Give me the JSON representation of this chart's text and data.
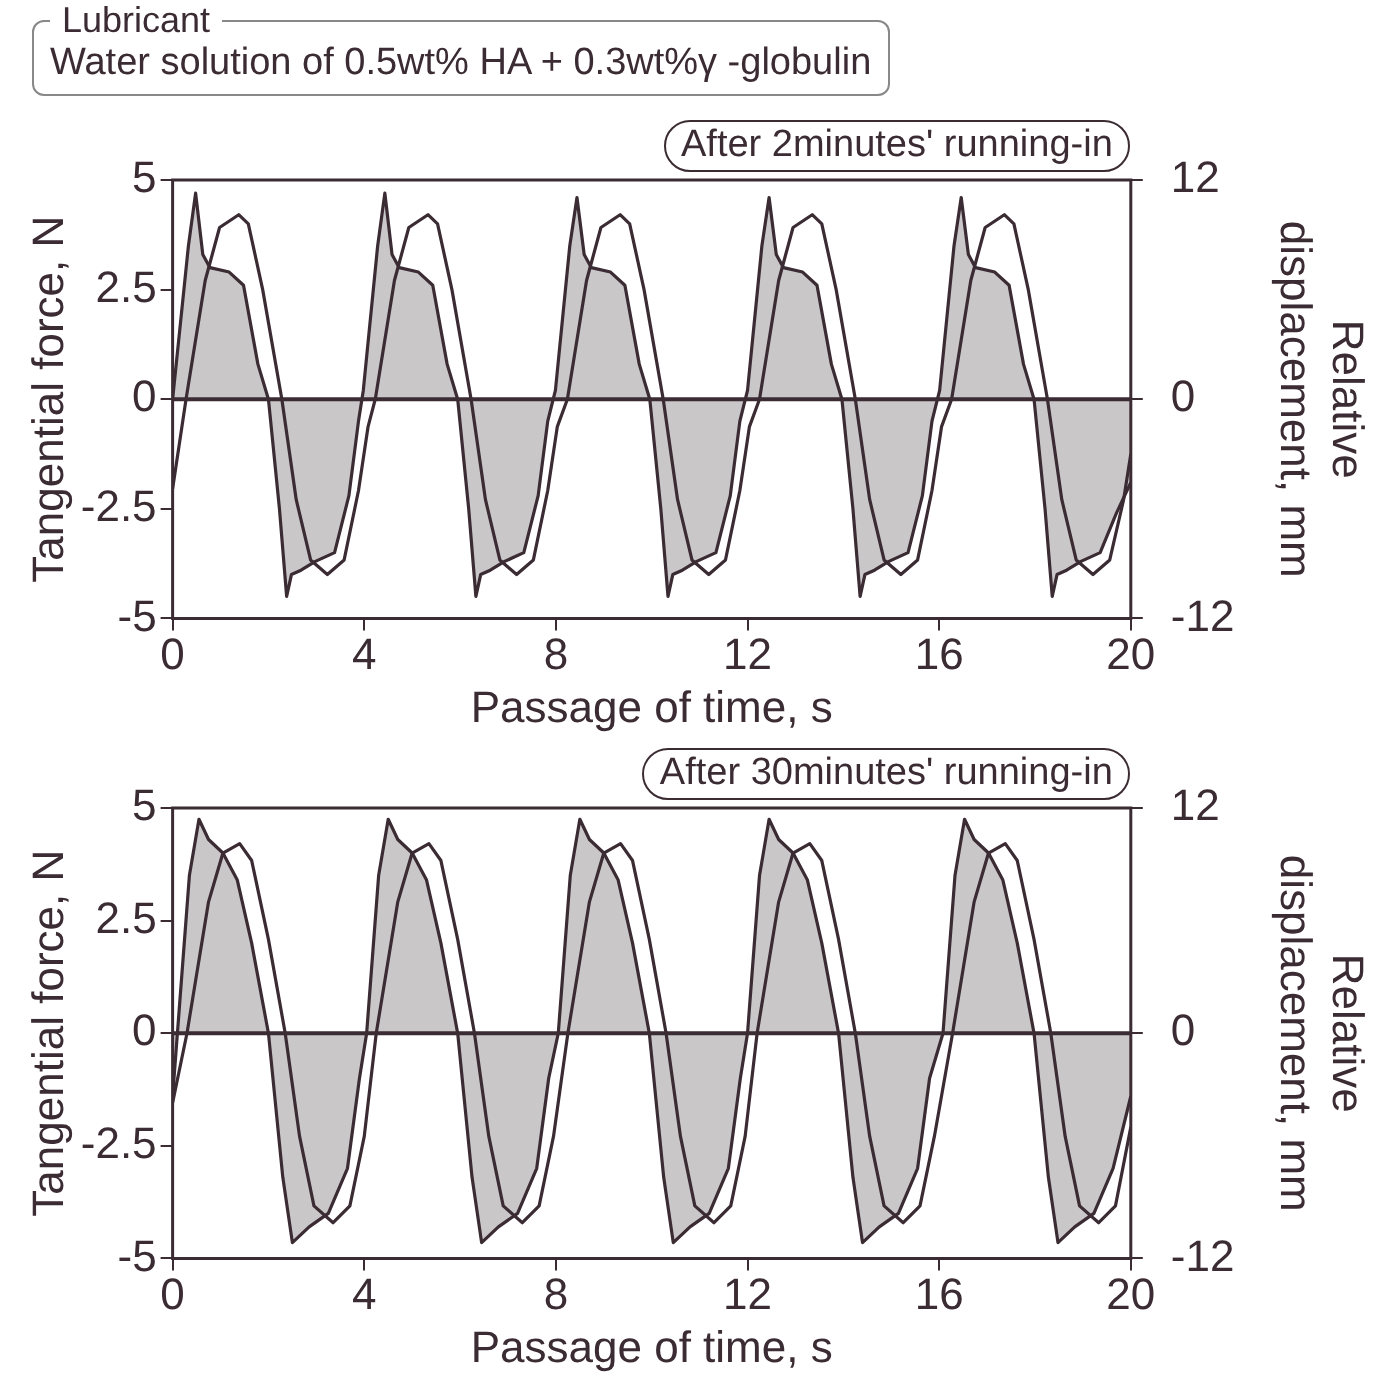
{
  "chart_data": [
    {
      "type": "line",
      "annotations": [
        "Lubricant",
        "Water solution of 0.5wt% HA + 0.3wt%γ -globulin",
        "After 2minutes' running-in"
      ],
      "xlabel": "Passage of time, s",
      "ylabel": "Tangential force, N",
      "y2label": "Relative displacement, mm",
      "xlim": [
        0,
        20
      ],
      "xticks": [
        0,
        4,
        8,
        12,
        16,
        20
      ],
      "ylim": [
        -5,
        5
      ],
      "yticks": [
        -5,
        -2.5,
        0,
        2.5,
        5
      ],
      "y2lim": [
        -12,
        12
      ],
      "y2ticks": [
        -12,
        0,
        12
      ],
      "grid": false,
      "legend": false,
      "ref_lines": [
        {
          "axis": "y",
          "value": 0,
          "color": "#3b2b33"
        }
      ],
      "series": [
        {
          "type": "area",
          "color": "#c9c7c8",
          "x": [
            0,
            0.33,
            0.48,
            0.63,
            0.78,
            1.18,
            1.48,
            1.78,
            2.0,
            2.23,
            2.38,
            2.48,
            2.68,
            2.98,
            3.38,
            3.68,
            3.88,
            3.98,
            4.28,
            4.43,
            4.58,
            4.73,
            5.13,
            5.43,
            5.73,
            5.95,
            6.18,
            6.33,
            6.43,
            6.63,
            6.93,
            7.33,
            7.63,
            7.83,
            7.99,
            8.29,
            8.44,
            8.59,
            8.74,
            9.14,
            9.44,
            9.74,
            9.96,
            10.19,
            10.34,
            10.44,
            10.64,
            10.94,
            11.34,
            11.64,
            11.84,
            12.0,
            12.3,
            12.45,
            12.6,
            12.75,
            13.15,
            13.45,
            13.75,
            13.97,
            14.2,
            14.35,
            14.45,
            14.65,
            14.95,
            15.35,
            15.65,
            15.85,
            16.01,
            16.31,
            16.46,
            16.61,
            16.76,
            17.16,
            17.46,
            17.76,
            17.98,
            18.21,
            18.36,
            18.46,
            18.66,
            18.96,
            19.36,
            19.7,
            20
          ],
          "values": [
            0,
            3.5,
            4.7,
            3.3,
            3.0,
            2.9,
            2.6,
            0.8,
            0,
            -2.5,
            -4.5,
            -4.0,
            -3.9,
            -3.7,
            -3.5,
            -2.2,
            -0.5,
            0.2,
            3.5,
            4.7,
            3.3,
            3.0,
            2.9,
            2.6,
            0.8,
            0,
            -2.5,
            -4.5,
            -4.0,
            -3.9,
            -3.7,
            -3.5,
            -2.2,
            -0.5,
            0.2,
            3.5,
            4.6,
            3.3,
            3.0,
            2.9,
            2.6,
            0.8,
            0,
            -2.5,
            -4.5,
            -4.0,
            -3.9,
            -3.7,
            -3.5,
            -2.2,
            -0.5,
            0.2,
            3.5,
            4.6,
            3.3,
            3.0,
            2.9,
            2.6,
            0.8,
            0,
            -2.5,
            -4.5,
            -4.0,
            -3.9,
            -3.7,
            -3.5,
            -2.2,
            -0.5,
            0.2,
            3.5,
            4.6,
            3.3,
            3.0,
            2.9,
            2.6,
            0.8,
            0,
            -2.5,
            -4.5,
            -4.0,
            -3.9,
            -3.7,
            -3.5,
            -2.6,
            -1.9
          ]
        },
        {
          "type": "line",
          "axis": "y2",
          "color": "#3b2b33",
          "x": [
            0,
            0.28,
            0.68,
            0.98,
            1.38,
            1.58,
            1.88,
            2.28,
            2.58,
            2.88,
            3.23,
            3.58,
            3.88,
            4.08,
            4.23,
            4.63,
            4.93,
            5.33,
            5.53,
            5.83,
            6.23,
            6.53,
            6.83,
            7.18,
            7.53,
            7.83,
            8.03,
            8.24,
            8.64,
            8.94,
            9.34,
            9.54,
            9.84,
            10.24,
            10.54,
            10.84,
            11.19,
            11.54,
            11.84,
            12.04,
            12.25,
            12.65,
            12.95,
            13.35,
            13.55,
            13.85,
            14.25,
            14.55,
            14.85,
            15.2,
            15.55,
            15.85,
            16.05,
            16.26,
            16.66,
            16.96,
            17.36,
            17.56,
            17.86,
            18.26,
            18.56,
            18.86,
            19.21,
            19.56,
            19.85,
            20
          ],
          "values": [
            -4.9,
            0,
            6.5,
            9.4,
            10.1,
            9.6,
            6,
            0,
            -5.5,
            -8.8,
            -9.6,
            -8.8,
            -5,
            -1.5,
            0,
            6.5,
            9.4,
            10.1,
            9.6,
            6,
            0,
            -5.5,
            -8.8,
            -9.6,
            -8.8,
            -5,
            -1.5,
            0,
            6.5,
            9.4,
            10.1,
            9.6,
            6,
            0,
            -5.5,
            -8.8,
            -9.6,
            -8.8,
            -5,
            -1.5,
            0,
            6.5,
            9.4,
            10.1,
            9.6,
            6,
            0,
            -5.5,
            -8.8,
            -9.6,
            -8.8,
            -5,
            -1.5,
            0,
            6.5,
            9.4,
            10.1,
            9.6,
            6,
            0,
            -5.5,
            -8.8,
            -9.6,
            -8.8,
            -5.5,
            -3
          ]
        }
      ]
    },
    {
      "type": "line",
      "annotations": [
        "After 30minutes' running-in"
      ],
      "xlabel": "Passage of time, s",
      "ylabel": "Tangential force, N",
      "y2label": "Relative displacement, mm",
      "xlim": [
        0,
        20
      ],
      "xticks": [
        0,
        4,
        8,
        12,
        16,
        20
      ],
      "ylim": [
        -5,
        5
      ],
      "yticks": [
        -5,
        -2.5,
        0,
        2.5,
        5
      ],
      "y2lim": [
        -12,
        12
      ],
      "y2ticks": [
        -12,
        0,
        12
      ],
      "grid": false,
      "legend": false,
      "ref_lines": [
        {
          "axis": "y",
          "value": 0,
          "color": "#3b2b33"
        }
      ],
      "series": [
        {
          "type": "area",
          "color": "#c9c7c8",
          "x": [
            0,
            0.1,
            0.35,
            0.55,
            0.75,
            1.05,
            1.35,
            1.65,
            2.0,
            2.3,
            2.5,
            2.85,
            3.25,
            3.65,
            3.9,
            4.05,
            4.3,
            4.5,
            4.7,
            5.0,
            5.3,
            5.6,
            5.95,
            6.25,
            6.45,
            6.8,
            7.2,
            7.6,
            7.85,
            8.05,
            8.3,
            8.5,
            8.7,
            9.0,
            9.3,
            9.6,
            9.95,
            10.25,
            10.45,
            10.8,
            11.2,
            11.6,
            11.85,
            12.0,
            12.25,
            12.45,
            12.65,
            12.95,
            13.25,
            13.55,
            13.9,
            14.2,
            14.4,
            14.75,
            15.15,
            15.55,
            15.8,
            16.08,
            16.33,
            16.53,
            16.73,
            17.03,
            17.33,
            17.63,
            17.98,
            18.28,
            18.48,
            18.83,
            19.23,
            19.63,
            20
          ],
          "values": [
            -1.4,
            0,
            3.5,
            4.75,
            4.3,
            4.0,
            3.4,
            2.0,
            0,
            -3.2,
            -4.65,
            -4.3,
            -4.0,
            -3.0,
            -1.0,
            0,
            3.5,
            4.75,
            4.3,
            4.0,
            3.4,
            2.0,
            0,
            -3.2,
            -4.65,
            -4.3,
            -4.0,
            -3.0,
            -1.0,
            0,
            3.5,
            4.75,
            4.3,
            4.0,
            3.4,
            2.0,
            0,
            -3.2,
            -4.65,
            -4.3,
            -4.0,
            -3.0,
            -1.0,
            0,
            3.5,
            4.75,
            4.3,
            4.0,
            3.4,
            2.0,
            0,
            -3.2,
            -4.65,
            -4.3,
            -4.0,
            -3.0,
            -1.0,
            0,
            3.5,
            4.75,
            4.3,
            4.0,
            3.4,
            2.0,
            0,
            -3.2,
            -4.65,
            -4.3,
            -4.0,
            -3.0,
            -1.4
          ]
        },
        {
          "type": "line",
          "axis": "y2",
          "color": "#3b2b33",
          "x": [
            0,
            0.3,
            0.75,
            1.05,
            1.4,
            1.65,
            2.0,
            2.35,
            2.65,
            2.95,
            3.35,
            3.7,
            4.0,
            4.25,
            4.7,
            5.0,
            5.35,
            5.6,
            5.95,
            6.3,
            6.6,
            6.9,
            7.3,
            7.65,
            7.95,
            8.25,
            8.7,
            9.0,
            9.35,
            9.6,
            9.95,
            10.3,
            10.6,
            10.9,
            11.3,
            11.65,
            11.95,
            12.2,
            12.65,
            12.95,
            13.3,
            13.55,
            13.9,
            14.25,
            14.55,
            14.85,
            15.25,
            15.6,
            15.9,
            16.28,
            16.73,
            17.03,
            17.38,
            17.63,
            17.98,
            18.33,
            18.63,
            18.93,
            19.33,
            19.68,
            20
          ],
          "values": [
            -3.7,
            0,
            7,
            9.6,
            10.1,
            9.2,
            5,
            0,
            -5.5,
            -9.2,
            -10.1,
            -9.2,
            -5.5,
            0,
            7,
            9.6,
            10.1,
            9.2,
            5,
            0,
            -5.5,
            -9.2,
            -10.1,
            -9.2,
            -5.5,
            0,
            7,
            9.6,
            10.1,
            9.2,
            5,
            0,
            -5.5,
            -9.2,
            -10.1,
            -9.2,
            -5.5,
            0,
            7,
            9.6,
            10.1,
            9.2,
            5,
            0,
            -5.5,
            -9.2,
            -10.1,
            -9.2,
            -5.5,
            0,
            7,
            9.6,
            10.1,
            9.2,
            5,
            0,
            -5.5,
            -9.2,
            -10.1,
            -9.2,
            -5
          ]
        }
      ]
    }
  ]
}
